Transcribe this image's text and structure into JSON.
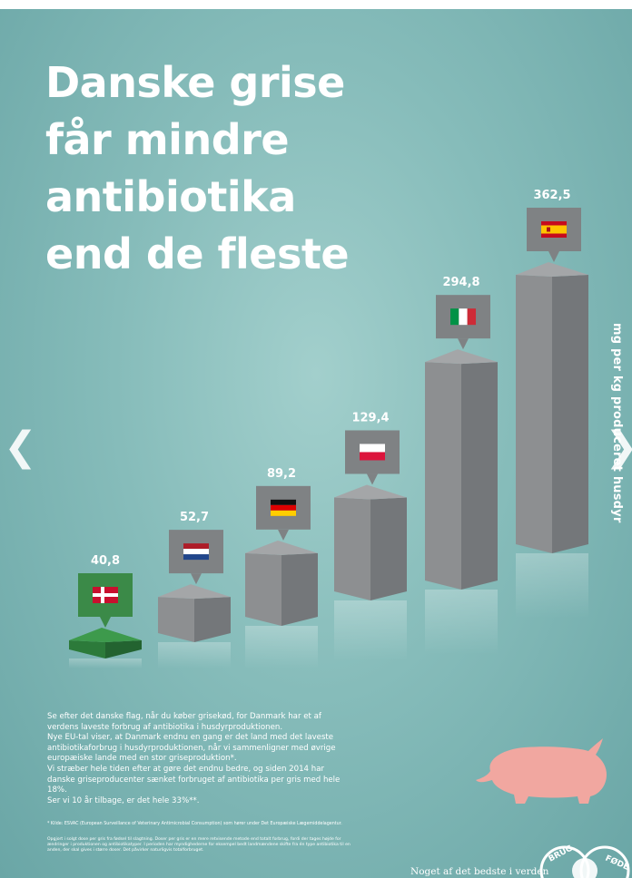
{
  "title_lines": [
    "Danske grise",
    "får mindre",
    "antibiotika",
    "end de fleste"
  ],
  "y_axis_label": "mg per kg produceret husdyr",
  "chart_data": {
    "type": "bar",
    "title": "Danske grise får mindre antibiotika end de fleste",
    "ylabel": "mg per kg produceret husdyr",
    "categories": [
      "Danmark",
      "Holland",
      "Tyskland",
      "Polen",
      "Italien",
      "Spanien"
    ],
    "values": [
      40.8,
      52.7,
      89.2,
      129.4,
      294.8,
      362.5
    ],
    "value_labels": [
      "40,8",
      "52,7",
      "89,2",
      "129,4",
      "294,8",
      "362,5"
    ],
    "highlight_color": "#2c7a3a",
    "bar_color": "#8d8f91",
    "flags": [
      "denmark-flag",
      "netherlands-flag",
      "germany-flag",
      "poland-flag",
      "italy-flag",
      "spain-flag"
    ]
  },
  "body_paragraphs": [
    "Se efter det danske flag, når du køber grisekød, for Danmark har et af verdens laveste forbrug af antibiotika i husdyrproduktionen.",
    "Nye EU-tal viser, at Danmark endnu en gang er det land med det laveste antibiotikaforbrug i husdyrproduktionen, når vi sammenligner med øvrige europæiske lande med en stor griseproduktion*.",
    "Vi stræber hele tiden efter at gøre det endnu bedre, og siden 2014 har danske griseproducenter sænket forbruget af antibiotika per gris med hele 18%.",
    "Ser vi 10 år tilbage, er det hele 33%**."
  ],
  "footnote_1": "* Kilde: ESVAC (European Surveillance of Veterinary Antimicrobial Consumption) som hører under Det Europæiske Lægemiddelagentur.",
  "footnote_2": "Opgjort i solgt dose per gris fra fødsel til slagtning. Doser per gris er en mere retvisende metode end totalt forbrug, fordi der tages højde for ændringer i produktionen og antibiotikatyper. I perioden har myndighederne for eksempel bedt landmændene skifte fra én type antibiotika til en anden, der skal gives i større doser. Det påvirker naturligvis totalforbruget.",
  "tagline": "Noget af det bedste i verden",
  "seal_text": "FØDEVARER · LANDBRUG",
  "pig_icon": "pig-silhouette-icon",
  "nav": {
    "left_icon": "chevron-left-icon",
    "right_icon": "chevron-right-icon",
    "left_glyph": "❮",
    "right_glyph": "❯"
  }
}
